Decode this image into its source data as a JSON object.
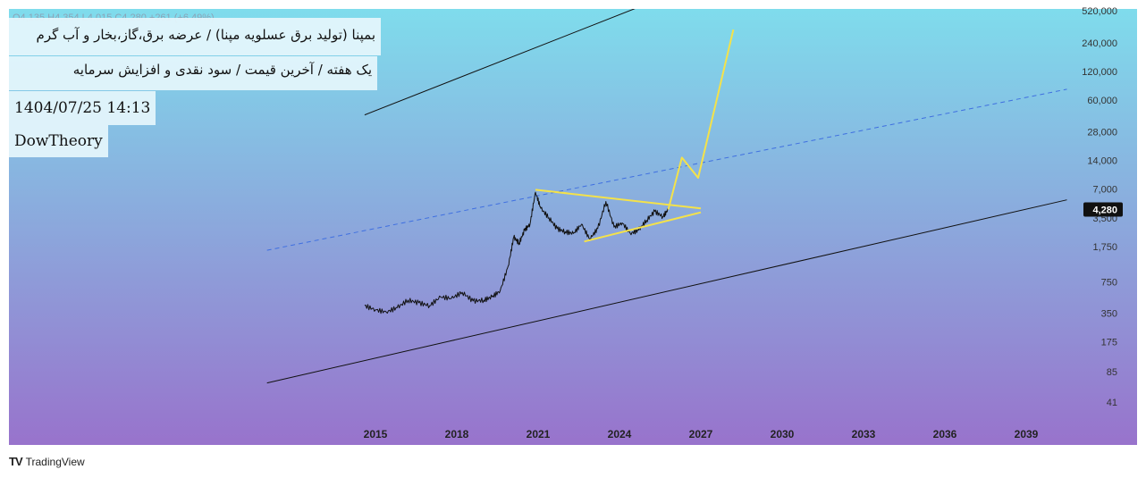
{
  "header": {
    "symbol_line": "بمپنا (تولید برق عسلویه مپنا) / عرضه برق،گاز،بخار و آب گرم",
    "subtitle_line": "یک هفته / آخرین قیمت / سود نقدی و افزایش سرمایه",
    "datetime": "1404/07/25 14:13",
    "author": "DowTheory",
    "ohlc_strip": "O4,135  H4,354  L4,015  C4,280  +261 (+6.49%)"
  },
  "footer": {
    "brand": "TradingView"
  },
  "colors": {
    "bg_top": "#7fdcec",
    "bg_bottom": "#9873cc",
    "price_line": "#111111",
    "channel_line": "#111111",
    "mid_line": "#3f6fe0",
    "triangle": "#f4e24a",
    "projection": "#f4e24a",
    "last_price_bg": "#111111"
  },
  "chart_data": {
    "type": "line",
    "title": "",
    "xlabel": "",
    "ylabel": "",
    "y_scale": "log",
    "x_ticks": [
      "2015",
      "2018",
      "2021",
      "2024",
      "2027",
      "2030",
      "2033",
      "2036",
      "2039"
    ],
    "y_ticks": [
      41,
      85,
      175,
      350,
      750,
      1750,
      3500,
      7000,
      14000,
      28000,
      60000,
      120000,
      240000,
      520000
    ],
    "y_tick_labels": [
      "41",
      "85",
      "175",
      "350",
      "750",
      "1,750",
      "3,500",
      "7,000",
      "14,000",
      "28,000",
      "60,000",
      "120,000",
      "240,000",
      "520,000"
    ],
    "last_price": 4280,
    "last_price_label": "4,280",
    "grid": false,
    "series": [
      {
        "values_x": [
          2014.6,
          2015.0,
          2015.4,
          2015.8,
          2016.2,
          2016.6,
          2017.0,
          2017.4,
          2017.8,
          2018.2,
          2018.6,
          2019.0,
          2019.3,
          2019.6,
          2019.9,
          2020.1,
          2020.3,
          2020.5,
          2020.7,
          2020.9,
          2021.1,
          2021.4,
          2021.7,
          2022.0,
          2022.3,
          2022.6,
          2022.9,
          2023.2,
          2023.5,
          2023.8,
          2024.1,
          2024.4,
          2024.7,
          2025.0,
          2025.3,
          2025.6,
          2025.8
        ],
        "values_y": [
          420,
          380,
          360,
          400,
          480,
          450,
          420,
          520,
          500,
          580,
          470,
          480,
          520,
          600,
          1100,
          2200,
          1900,
          2600,
          3000,
          6500,
          4400,
          3500,
          2700,
          2500,
          2400,
          3000,
          2100,
          2700,
          5200,
          2800,
          3100,
          2400,
          2600,
          3300,
          4100,
          3600,
          4280
        ]
      }
    ],
    "annotations": {
      "channel_upper": [
        [
          2014.6,
          42000
        ],
        [
          2026.5,
          900000
        ]
      ],
      "channel_lower": [
        [
          2011.0,
          65
        ],
        [
          2040.5,
          5400
        ]
      ],
      "channel_mid": [
        [
          2011.0,
          1600
        ],
        [
          2040.5,
          78000
        ]
      ],
      "triangle_upper": [
        [
          2020.9,
          6900
        ],
        [
          2027.0,
          4400
        ]
      ],
      "triangle_lower": [
        [
          2022.7,
          1980
        ],
        [
          2027.0,
          4000
        ]
      ],
      "projection_path": [
        [
          2025.8,
          4280
        ],
        [
          2026.3,
          15000
        ],
        [
          2026.9,
          9200
        ],
        [
          2028.2,
          330000
        ]
      ]
    }
  }
}
